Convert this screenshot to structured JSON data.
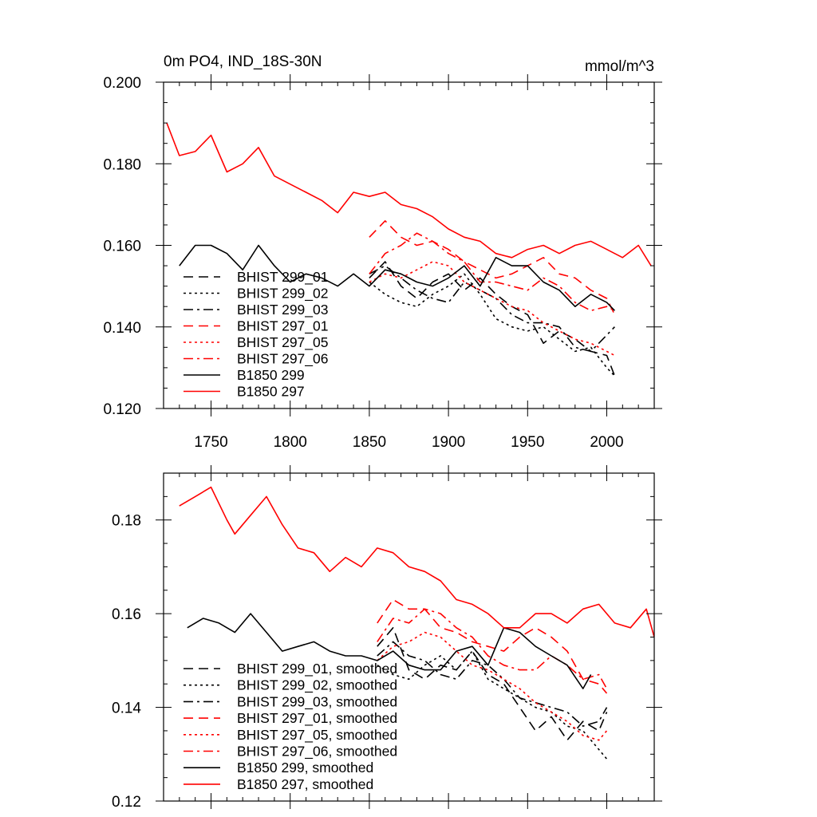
{
  "chart_data": [
    {
      "type": "line",
      "title_left": "0m PO4, IND_18S-30N",
      "title_right": "mmol/m^3",
      "xlabel": "",
      "ylabel": "",
      "xlim": [
        1720,
        2030
      ],
      "ylim": [
        0.12,
        0.2
      ],
      "xticks": [
        1750,
        1800,
        1850,
        1900,
        1950,
        2000
      ],
      "xtick_labels": [
        "1750",
        "1800",
        "1850",
        "1900",
        "1950",
        "2000"
      ],
      "yticks": [
        0.12,
        0.14,
        0.16,
        0.18,
        0.2
      ],
      "ytick_labels": [
        "0.120",
        "0.140",
        "0.160",
        "0.180",
        "0.200"
      ],
      "legend_position": "lower-left",
      "series": [
        {
          "name": "BHIST 299_01",
          "color": "#000000",
          "dash": "dashed",
          "x": [
            1850,
            1860,
            1870,
            1880,
            1890,
            1900,
            1910,
            1920,
            1930,
            1940,
            1950,
            1960,
            1970,
            1980,
            1990,
            2000,
            2005
          ],
          "y": [
            0.152,
            0.156,
            0.15,
            0.147,
            0.151,
            0.153,
            0.149,
            0.152,
            0.148,
            0.145,
            0.143,
            0.136,
            0.139,
            0.137,
            0.134,
            0.133,
            0.128
          ]
        },
        {
          "name": "BHIST 299_02",
          "color": "#000000",
          "dash": "dotted",
          "x": [
            1850,
            1860,
            1870,
            1880,
            1890,
            1900,
            1910,
            1920,
            1930,
            1940,
            1950,
            1960,
            1970,
            1980,
            1990,
            2000,
            2005
          ],
          "y": [
            0.151,
            0.148,
            0.146,
            0.145,
            0.148,
            0.15,
            0.153,
            0.148,
            0.142,
            0.14,
            0.139,
            0.14,
            0.137,
            0.134,
            0.135,
            0.13,
            0.128
          ]
        },
        {
          "name": "BHIST 299_03",
          "color": "#000000",
          "dash": "dashdot",
          "x": [
            1850,
            1860,
            1870,
            1880,
            1890,
            1900,
            1910,
            1920,
            1930,
            1940,
            1950,
            1960,
            1970,
            1980,
            1990,
            2000,
            2005
          ],
          "y": [
            0.153,
            0.155,
            0.152,
            0.149,
            0.147,
            0.146,
            0.151,
            0.149,
            0.147,
            0.143,
            0.141,
            0.141,
            0.14,
            0.135,
            0.134,
            0.138,
            0.14
          ]
        },
        {
          "name": "BHIST 297_01",
          "color": "#ff0000",
          "dash": "dashed",
          "x": [
            1850,
            1860,
            1870,
            1880,
            1890,
            1900,
            1910,
            1920,
            1930,
            1940,
            1950,
            1960,
            1970,
            1980,
            1990,
            2000,
            2005
          ],
          "y": [
            0.162,
            0.166,
            0.162,
            0.16,
            0.161,
            0.159,
            0.156,
            0.154,
            0.152,
            0.153,
            0.155,
            0.157,
            0.153,
            0.152,
            0.149,
            0.147,
            0.143
          ]
        },
        {
          "name": "BHIST 297_05",
          "color": "#ff0000",
          "dash": "dotted",
          "x": [
            1850,
            1860,
            1870,
            1880,
            1890,
            1900,
            1910,
            1920,
            1930,
            1940,
            1950,
            1960,
            1970,
            1980,
            1990,
            2000,
            2005
          ],
          "y": [
            0.151,
            0.153,
            0.152,
            0.154,
            0.156,
            0.155,
            0.151,
            0.149,
            0.147,
            0.145,
            0.144,
            0.141,
            0.139,
            0.137,
            0.136,
            0.134,
            0.133
          ]
        },
        {
          "name": "BHIST 297_06",
          "color": "#ff0000",
          "dash": "dashdot",
          "x": [
            1850,
            1860,
            1870,
            1880,
            1890,
            1900,
            1910,
            1920,
            1930,
            1940,
            1950,
            1960,
            1970,
            1980,
            1990,
            2000,
            2005
          ],
          "y": [
            0.153,
            0.158,
            0.16,
            0.163,
            0.161,
            0.158,
            0.156,
            0.151,
            0.151,
            0.15,
            0.149,
            0.152,
            0.15,
            0.146,
            0.144,
            0.145,
            0.144
          ]
        },
        {
          "name": "B1850 299",
          "color": "#000000",
          "dash": "solid",
          "x": [
            1730,
            1740,
            1750,
            1760,
            1770,
            1780,
            1790,
            1800,
            1810,
            1820,
            1830,
            1840,
            1850,
            1860,
            1870,
            1880,
            1890,
            1900,
            1910,
            1920,
            1930,
            1940,
            1950,
            1960,
            1970,
            1980,
            1990,
            2000,
            2005
          ],
          "y": [
            0.155,
            0.16,
            0.16,
            0.158,
            0.154,
            0.16,
            0.155,
            0.151,
            0.153,
            0.152,
            0.15,
            0.153,
            0.15,
            0.154,
            0.153,
            0.151,
            0.15,
            0.152,
            0.155,
            0.15,
            0.157,
            0.155,
            0.155,
            0.151,
            0.149,
            0.145,
            0.148,
            0.146,
            0.144
          ]
        },
        {
          "name": "B1850 297",
          "color": "#ff0000",
          "dash": "solid",
          "x": [
            1722,
            1730,
            1740,
            1750,
            1760,
            1770,
            1780,
            1790,
            1800,
            1810,
            1820,
            1830,
            1840,
            1850,
            1860,
            1870,
            1880,
            1890,
            1900,
            1910,
            1920,
            1930,
            1940,
            1950,
            1960,
            1970,
            1980,
            1990,
            2000,
            2010,
            2020,
            2028
          ],
          "y": [
            0.19,
            0.182,
            0.183,
            0.187,
            0.178,
            0.18,
            0.184,
            0.177,
            0.175,
            0.173,
            0.171,
            0.168,
            0.173,
            0.172,
            0.173,
            0.17,
            0.169,
            0.167,
            0.164,
            0.162,
            0.161,
            0.158,
            0.157,
            0.159,
            0.16,
            0.158,
            0.16,
            0.161,
            0.159,
            0.157,
            0.16,
            0.155
          ]
        }
      ]
    },
    {
      "type": "line",
      "title_left": "",
      "title_right": "",
      "xlabel": "",
      "ylabel": "",
      "xlim": [
        1720,
        2030
      ],
      "ylim": [
        0.12,
        0.19
      ],
      "xticks": [
        1750,
        1800,
        1850,
        1900,
        1950,
        2000
      ],
      "xtick_labels": [],
      "yticks": [
        0.12,
        0.14,
        0.16,
        0.18
      ],
      "ytick_labels": [
        "0.12",
        "0.14",
        "0.16",
        "0.18"
      ],
      "legend_position": "lower-left",
      "series": [
        {
          "name": "BHIST 299_01, smoothed",
          "color": "#000000",
          "dash": "dashed",
          "x": [
            1855,
            1865,
            1875,
            1885,
            1895,
            1905,
            1915,
            1925,
            1935,
            1945,
            1955,
            1965,
            1975,
            1985,
            1995,
            2000
          ],
          "y": [
            0.153,
            0.157,
            0.148,
            0.146,
            0.149,
            0.148,
            0.152,
            0.147,
            0.145,
            0.14,
            0.135,
            0.138,
            0.133,
            0.137,
            0.135,
            0.139
          ]
        },
        {
          "name": "BHIST 299_02, smoothed",
          "color": "#000000",
          "dash": "dotted",
          "x": [
            1855,
            1865,
            1875,
            1885,
            1895,
            1905,
            1915,
            1925,
            1935,
            1945,
            1955,
            1965,
            1975,
            1985,
            1995,
            2000
          ],
          "y": [
            0.149,
            0.147,
            0.146,
            0.149,
            0.151,
            0.148,
            0.152,
            0.146,
            0.144,
            0.142,
            0.14,
            0.139,
            0.136,
            0.135,
            0.131,
            0.129
          ]
        },
        {
          "name": "BHIST 299_03, smoothed",
          "color": "#000000",
          "dash": "dashdot",
          "x": [
            1855,
            1865,
            1875,
            1885,
            1895,
            1905,
            1915,
            1925,
            1935,
            1945,
            1955,
            1965,
            1975,
            1985,
            1995,
            2000
          ],
          "y": [
            0.151,
            0.154,
            0.151,
            0.15,
            0.147,
            0.146,
            0.15,
            0.149,
            0.146,
            0.142,
            0.141,
            0.14,
            0.139,
            0.136,
            0.137,
            0.14
          ]
        },
        {
          "name": "BHIST 297_01, smoothed",
          "color": "#ff0000",
          "dash": "dashed",
          "x": [
            1855,
            1865,
            1875,
            1885,
            1895,
            1905,
            1915,
            1925,
            1935,
            1945,
            1955,
            1965,
            1975,
            1985,
            1995,
            2000
          ],
          "y": [
            0.158,
            0.163,
            0.161,
            0.161,
            0.157,
            0.156,
            0.154,
            0.153,
            0.152,
            0.155,
            0.157,
            0.155,
            0.152,
            0.146,
            0.145,
            0.143
          ]
        },
        {
          "name": "BHIST 297_05, smoothed",
          "color": "#ff0000",
          "dash": "dotted",
          "x": [
            1855,
            1865,
            1875,
            1885,
            1895,
            1905,
            1915,
            1925,
            1935,
            1945,
            1955,
            1965,
            1975,
            1985,
            1995,
            2000
          ],
          "y": [
            0.15,
            0.153,
            0.154,
            0.156,
            0.155,
            0.152,
            0.149,
            0.148,
            0.146,
            0.144,
            0.141,
            0.139,
            0.137,
            0.134,
            0.133,
            0.135
          ]
        },
        {
          "name": "BHIST 297_06, smoothed",
          "color": "#ff0000",
          "dash": "dashdot",
          "x": [
            1855,
            1865,
            1875,
            1885,
            1895,
            1905,
            1915,
            1925,
            1935,
            1945,
            1955,
            1965,
            1975,
            1985,
            1995,
            2000
          ],
          "y": [
            0.154,
            0.159,
            0.158,
            0.161,
            0.16,
            0.157,
            0.155,
            0.151,
            0.149,
            0.148,
            0.148,
            0.151,
            0.149,
            0.146,
            0.147,
            0.144
          ]
        },
        {
          "name": "B1850 299, smoothed",
          "color": "#000000",
          "dash": "solid",
          "x": [
            1735,
            1745,
            1755,
            1765,
            1775,
            1785,
            1795,
            1805,
            1815,
            1825,
            1835,
            1845,
            1855,
            1865,
            1875,
            1885,
            1895,
            1905,
            1915,
            1925,
            1935,
            1945,
            1955,
            1965,
            1975,
            1985,
            1990
          ],
          "y": [
            0.157,
            0.159,
            0.158,
            0.156,
            0.16,
            0.156,
            0.152,
            0.153,
            0.154,
            0.152,
            0.151,
            0.151,
            0.15,
            0.152,
            0.149,
            0.148,
            0.148,
            0.152,
            0.153,
            0.149,
            0.157,
            0.156,
            0.153,
            0.151,
            0.149,
            0.144,
            0.147
          ]
        },
        {
          "name": "B1850 297, smoothed",
          "color": "#ff0000",
          "dash": "solid",
          "x": [
            1730,
            1740,
            1750,
            1760,
            1765,
            1775,
            1785,
            1795,
            1805,
            1815,
            1825,
            1835,
            1845,
            1855,
            1865,
            1875,
            1885,
            1895,
            1905,
            1915,
            1925,
            1935,
            1945,
            1955,
            1965,
            1975,
            1985,
            1995,
            2005,
            2015,
            2025,
            2030
          ],
          "y": [
            0.183,
            0.185,
            0.187,
            0.18,
            0.177,
            0.181,
            0.185,
            0.179,
            0.174,
            0.173,
            0.169,
            0.172,
            0.17,
            0.174,
            0.173,
            0.17,
            0.169,
            0.167,
            0.163,
            0.162,
            0.16,
            0.157,
            0.157,
            0.16,
            0.16,
            0.158,
            0.161,
            0.162,
            0.158,
            0.157,
            0.161,
            0.155
          ]
        }
      ]
    }
  ]
}
